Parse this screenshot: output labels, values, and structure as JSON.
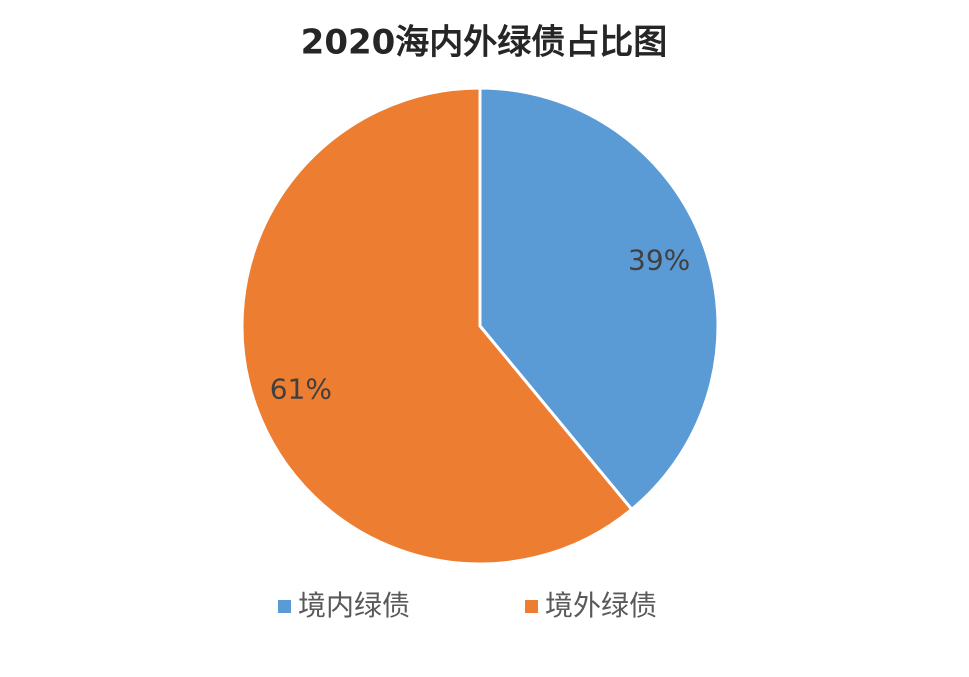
{
  "chart_data": {
    "type": "pie",
    "title": "2020海内外绿债占比图",
    "categories": [
      "境内绿债",
      "境外绿债"
    ],
    "values": [
      39,
      61
    ],
    "value_labels": [
      "39%",
      "61%"
    ],
    "colors": [
      "#5b9bd5",
      "#ed7d31"
    ],
    "legend": "bottom"
  }
}
